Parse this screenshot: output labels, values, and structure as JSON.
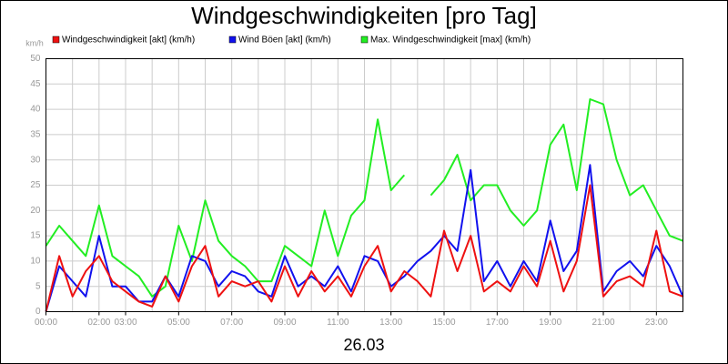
{
  "chart_data": {
    "type": "line",
    "title": "Windgeschwindigkeiten [pro Tag]",
    "ylabel": "km/h",
    "xlabel": "26.03",
    "x": [
      0,
      0.5,
      1,
      1.5,
      2,
      2.5,
      3,
      3.5,
      4,
      4.5,
      5,
      5.5,
      6,
      6.5,
      7,
      7.5,
      8,
      8.5,
      9,
      9.5,
      10,
      10.5,
      11,
      11.5,
      12,
      12.5,
      13,
      13.5,
      14,
      14.5,
      15,
      15.5,
      16,
      16.5,
      17,
      17.5,
      18,
      18.5,
      19,
      19.5,
      20,
      20.5,
      21,
      21.5,
      22,
      22.5,
      23,
      23.5,
      24
    ],
    "series": [
      {
        "name": "Windgeschwindigkeit [akt] (km/h)",
        "color": "#ee1111",
        "values": [
          0,
          11,
          3,
          8,
          11,
          6,
          4,
          2,
          1,
          7,
          2,
          9,
          13,
          3,
          6,
          5,
          6,
          2,
          9,
          3,
          8,
          4,
          7,
          3,
          9,
          13,
          4,
          8,
          6,
          3,
          16,
          8,
          15,
          4,
          6,
          4,
          9,
          5,
          14,
          4,
          10,
          25,
          3,
          6,
          7,
          5,
          16,
          4,
          3
        ]
      },
      {
        "name": "Wind Böen [akt] (km/h)",
        "color": "#1111ee",
        "values": [
          0,
          9,
          6,
          3,
          15,
          5,
          5,
          2,
          2,
          7,
          3,
          11,
          10,
          5,
          8,
          7,
          4,
          3,
          11,
          5,
          7,
          5,
          9,
          4,
          11,
          10,
          5,
          7,
          10,
          12,
          15,
          12,
          28,
          6,
          10,
          5,
          10,
          6,
          18,
          8,
          12,
          29,
          4,
          8,
          10,
          7,
          13,
          9,
          3
        ]
      },
      {
        "name": "Max. Windgeschwindigkeit [max] (km/h)",
        "color": "#22ee22",
        "values": [
          13,
          17,
          14,
          11,
          21,
          11,
          9,
          7,
          3,
          5,
          17,
          10,
          22,
          14,
          11,
          9,
          6,
          6,
          13,
          11,
          9,
          20,
          11,
          19,
          22,
          38,
          24,
          27,
          null,
          23,
          26,
          31,
          22,
          25,
          25,
          20,
          17,
          20,
          33,
          37,
          24,
          42,
          41,
          30,
          23,
          25,
          20,
          15,
          14
        ]
      }
    ],
    "xlim": [
      0,
      24
    ],
    "xticks": [
      {
        "value": 0,
        "label": "00:00"
      },
      {
        "value": 2,
        "label": "02:00"
      },
      {
        "value": 3,
        "label": "03:00"
      },
      {
        "value": 5,
        "label": "05:00"
      },
      {
        "value": 7,
        "label": "07:00"
      },
      {
        "value": 9,
        "label": "09:00"
      },
      {
        "value": 11,
        "label": "11:00"
      },
      {
        "value": 13,
        "label": "13:00"
      },
      {
        "value": 15,
        "label": "15:00"
      },
      {
        "value": 17,
        "label": "17:00"
      },
      {
        "value": 19,
        "label": "19:00"
      },
      {
        "value": 21,
        "label": "21:00"
      },
      {
        "value": 23,
        "label": "23:00"
      }
    ],
    "xgrid": [
      1,
      2,
      3,
      4,
      5,
      6,
      7,
      8,
      9,
      10,
      11,
      12,
      13,
      14,
      15,
      16,
      17,
      18,
      19,
      20,
      21,
      22,
      23
    ],
    "ylim": [
      0,
      50
    ],
    "yticks": [
      0,
      5,
      10,
      15,
      20,
      25,
      30,
      35,
      40,
      45,
      50
    ],
    "grid": true
  }
}
